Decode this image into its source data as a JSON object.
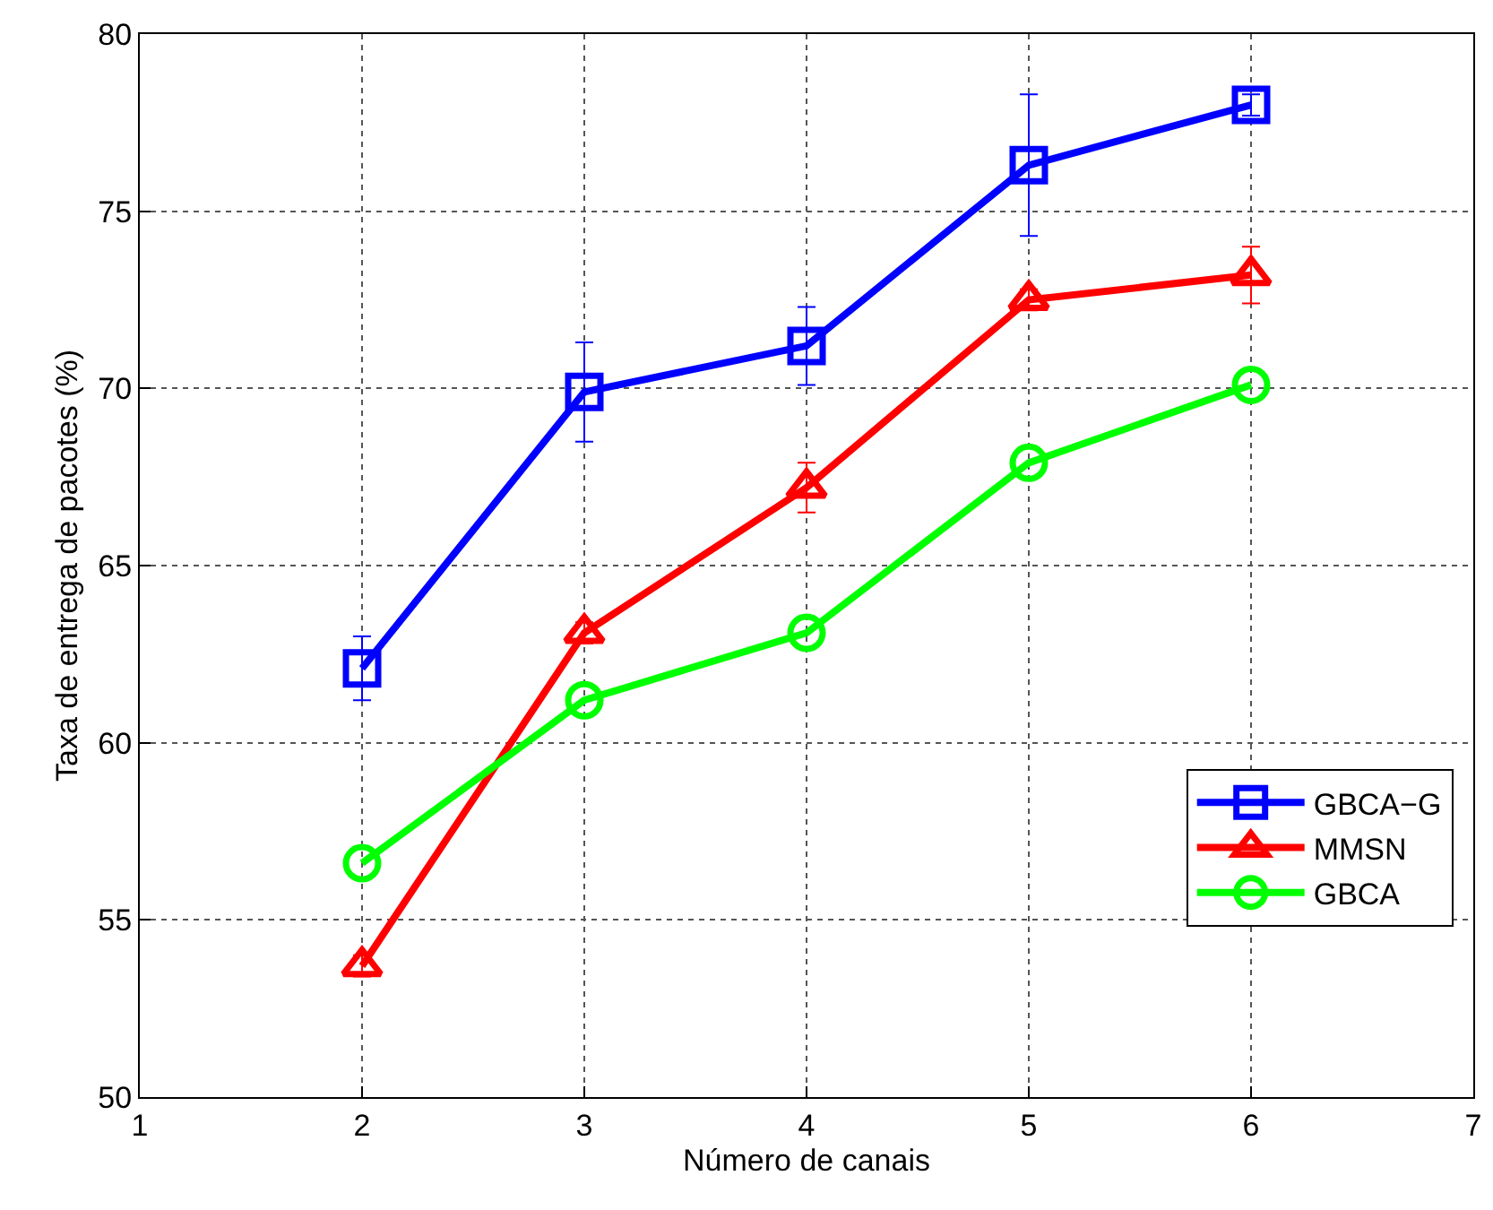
{
  "chart_data": {
    "type": "line",
    "xlabel": "Número de canais",
    "ylabel": "Taxa de entrega de pacotes (%)",
    "x": [
      2,
      3,
      4,
      5,
      6
    ],
    "series": [
      {
        "name": "GBCA−G",
        "color": "#0000ff",
        "marker": "square",
        "values": [
          62.1,
          69.9,
          71.2,
          76.3,
          78.0
        ],
        "errors": [
          0.9,
          1.4,
          1.1,
          2.0,
          0.3
        ]
      },
      {
        "name": "MMSN",
        "color": "#ff0000",
        "marker": "triangle",
        "values": [
          53.7,
          63.1,
          67.2,
          72.5,
          73.2
        ],
        "errors": [
          0.3,
          0.3,
          0.7,
          0.3,
          0.8
        ]
      },
      {
        "name": "GBCA",
        "color": "#00ff00",
        "marker": "circle",
        "values": [
          56.6,
          61.2,
          63.1,
          67.9,
          70.1
        ]
      }
    ],
    "xlim": [
      1,
      7
    ],
    "xticks": [
      1,
      2,
      3,
      4,
      5,
      6,
      7
    ],
    "ylim": [
      50,
      80
    ],
    "yticks": [
      50,
      55,
      60,
      65,
      70,
      75,
      80
    ],
    "grid": true,
    "legend": "bottom right",
    "line_style": "solid"
  }
}
